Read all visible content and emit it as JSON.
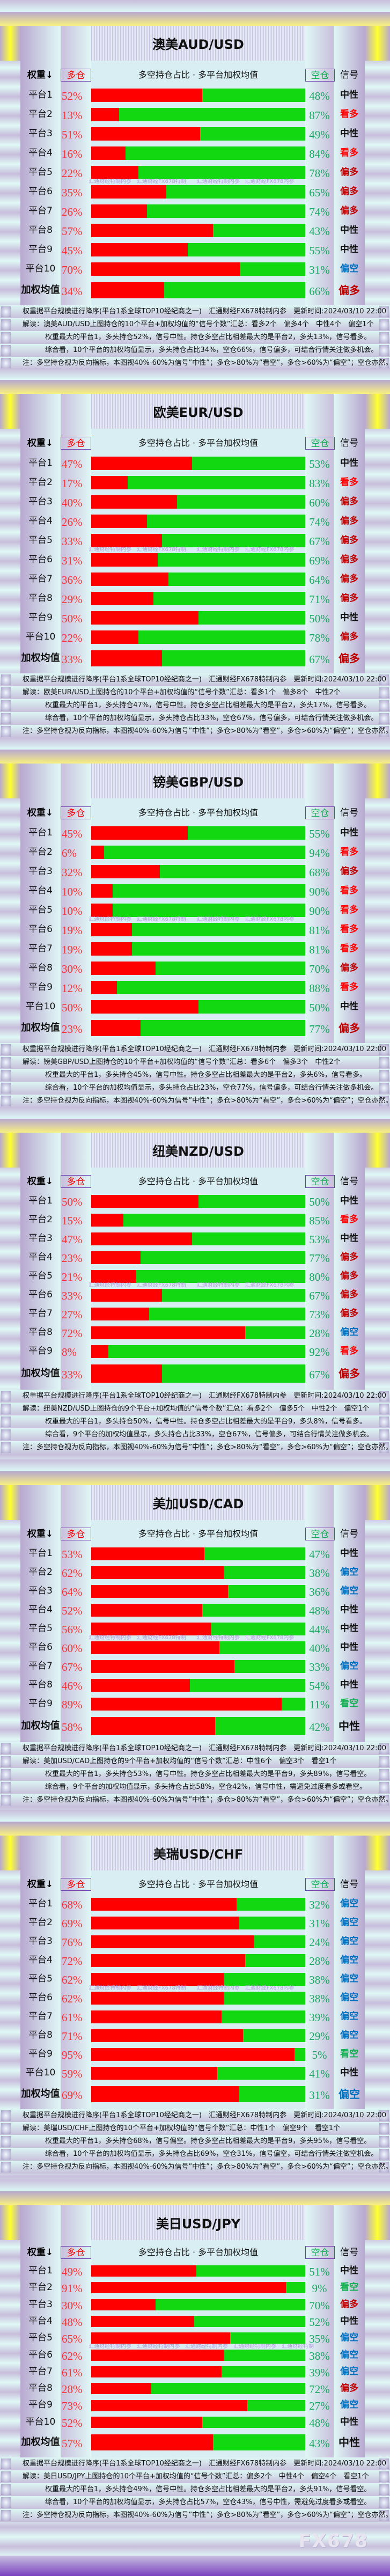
{
  "common": {
    "header_weight": "权重↓",
    "header_long": "多仓",
    "header_middle": "多空持仓占比 · 多平台加权均值",
    "header_short": "空仓",
    "header_signal": "信号",
    "avg_label": "加权均值",
    "footer_line1": "权重据平台规模进行降序(平台1系全球TOP10经纪商之一)　汇通财经FX678特制内参　更新时间:2024/03/10 22:00",
    "footer_note": "注：多空持仓视为反向指标，本图视40%-60%为信号”中性”；多仓>80%为“看空”，多仓>60%为“偏空”；空仓亦然。",
    "watermark": "汇通财经特制内参　汇通财经FX678特制　　汇通财经特制内参　汇通财经FX678内参",
    "brand": "FX678"
  },
  "colors": {
    "long_bar": "#ff0000",
    "short_bar": "#12d812",
    "signals": {
      "看多": "#ff0000",
      "偏多": "#c00000",
      "中性": "#111111",
      "偏空": "#0070c0",
      "看空": "#10b050"
    }
  },
  "panels": [
    {
      "title": "澳美AUD/USD",
      "rows": [
        {
          "label": "平台1",
          "long": "52%",
          "short": "48%",
          "signal": "中性"
        },
        {
          "label": "平台2",
          "long": "13%",
          "short": "87%",
          "signal": "看多"
        },
        {
          "label": "平台3",
          "long": "51%",
          "short": "49%",
          "signal": "中性"
        },
        {
          "label": "平台4",
          "long": "16%",
          "short": "84%",
          "signal": "看多"
        },
        {
          "label": "平台5",
          "long": "22%",
          "short": "78%",
          "signal": "偏多"
        },
        {
          "label": "平台6",
          "long": "35%",
          "short": "65%",
          "signal": "偏多"
        },
        {
          "label": "平台7",
          "long": "26%",
          "short": "74%",
          "signal": "偏多"
        },
        {
          "label": "平台8",
          "long": "57%",
          "short": "43%",
          "signal": "中性"
        },
        {
          "label": "平台9",
          "long": "45%",
          "short": "55%",
          "signal": "中性"
        },
        {
          "label": "平台10",
          "long": "70%",
          "short": "31%",
          "signal": "偏空"
        }
      ],
      "average": {
        "long": "34%",
        "short": "66%",
        "signal": "偏多"
      },
      "summary": "解读：澳美AUD/USD上图持仓的10个平台+加权均值的“信号个数”汇总：看多2个　偏多4个　中性4个　偏空1个",
      "detail": "权重最大的平台1，多头持仓52%，信号中性。持仓多空占比相差最大的是平台2，多头13%，信号看多。",
      "conclusion": "综合看，10个平台的加权均值显示，多头持仓占比34%，空仓66%，信号偏多，可结合行情关注做多机会。"
    },
    {
      "title": "欧美EUR/USD",
      "rows": [
        {
          "label": "平台1",
          "long": "47%",
          "short": "53%",
          "signal": "中性"
        },
        {
          "label": "平台2",
          "long": "17%",
          "short": "83%",
          "signal": "看多"
        },
        {
          "label": "平台3",
          "long": "40%",
          "short": "60%",
          "signal": "偏多"
        },
        {
          "label": "平台4",
          "long": "26%",
          "short": "74%",
          "signal": "偏多"
        },
        {
          "label": "平台5",
          "long": "33%",
          "short": "67%",
          "signal": "偏多"
        },
        {
          "label": "平台6",
          "long": "31%",
          "short": "69%",
          "signal": "偏多"
        },
        {
          "label": "平台7",
          "long": "36%",
          "short": "64%",
          "signal": "偏多"
        },
        {
          "label": "平台8",
          "long": "29%",
          "short": "71%",
          "signal": "偏多"
        },
        {
          "label": "平台9",
          "long": "50%",
          "short": "50%",
          "signal": "中性"
        },
        {
          "label": "平台10",
          "long": "22%",
          "short": "78%",
          "signal": "偏多"
        }
      ],
      "average": {
        "long": "33%",
        "short": "67%",
        "signal": "偏多"
      },
      "summary": "解读：欧美EUR/USD上图持仓的10个平台+加权均值的“信号个数”汇总：看多1个　偏多8个　中性2个",
      "detail": "权重最大的平台1，多头持仓47%，信号中性。持仓多空占比相差最大的是平台2，多头17%，信号看多。",
      "conclusion": "综合看，10个平台的加权均值显示，多头持仓占比33%，空仓67%，信号偏多，可结合行情关注做多机会。"
    },
    {
      "title": "镑美GBP/USD",
      "rows": [
        {
          "label": "平台1",
          "long": "45%",
          "short": "55%",
          "signal": "中性"
        },
        {
          "label": "平台2",
          "long": "6%",
          "short": "94%",
          "signal": "看多"
        },
        {
          "label": "平台3",
          "long": "32%",
          "short": "68%",
          "signal": "偏多"
        },
        {
          "label": "平台4",
          "long": "10%",
          "short": "90%",
          "signal": "看多"
        },
        {
          "label": "平台5",
          "long": "10%",
          "short": "90%",
          "signal": "看多"
        },
        {
          "label": "平台6",
          "long": "19%",
          "short": "81%",
          "signal": "看多"
        },
        {
          "label": "平台7",
          "long": "19%",
          "short": "81%",
          "signal": "看多"
        },
        {
          "label": "平台8",
          "long": "30%",
          "short": "70%",
          "signal": "偏多"
        },
        {
          "label": "平台9",
          "long": "12%",
          "short": "88%",
          "signal": "看多"
        },
        {
          "label": "平台10",
          "long": "50%",
          "short": "50%",
          "signal": "中性"
        }
      ],
      "average": {
        "long": "23%",
        "short": "77%",
        "signal": "偏多"
      },
      "summary": "解读：镑美GBP/USD上图持仓的10个平台+加权均值的“信号个数”汇总：看多6个　偏多3个　中性2个",
      "detail": "权重最大的平台1，多头持仓45%，信号中性。持仓多空占比相差最大的是平台2，多头6%，信号看多。",
      "conclusion": "综合看，10个平台的加权均值显示，多头持仓占比23%，空仓77%，信号偏多，可结合行情关注做多机会。"
    },
    {
      "title": "纽美NZD/USD",
      "rows": [
        {
          "label": "平台1",
          "long": "50%",
          "short": "50%",
          "signal": "中性"
        },
        {
          "label": "平台2",
          "long": "15%",
          "short": "85%",
          "signal": "看多"
        },
        {
          "label": "平台3",
          "long": "47%",
          "short": "53%",
          "signal": "中性"
        },
        {
          "label": "平台4",
          "long": "23%",
          "short": "77%",
          "signal": "偏多"
        },
        {
          "label": "平台5",
          "long": "21%",
          "short": "80%",
          "signal": "偏多"
        },
        {
          "label": "平台6",
          "long": "33%",
          "short": "67%",
          "signal": "偏多"
        },
        {
          "label": "平台7",
          "long": "27%",
          "short": "73%",
          "signal": "偏多"
        },
        {
          "label": "平台8",
          "long": "72%",
          "short": "28%",
          "signal": "偏空"
        },
        {
          "label": "平台9",
          "long": "8%",
          "short": "92%",
          "signal": "看多"
        }
      ],
      "average": {
        "long": "33%",
        "short": "67%",
        "signal": "偏多"
      },
      "summary": "解读：纽美NZD/USD上图持仓的9个平台+加权均值的“信号个数”汇总：看多2个　偏多5个　中性2个　偏空1个",
      "detail": "权重最大的平台1，多头持仓50%，信号中性。持仓多空占比相差最大的是平台9，多头8%，信号看多。",
      "conclusion": "综合看，9个平台的加权均值显示，多头持仓占比33%，空仓67%，信号偏多，可结合行情关注做多机会。"
    },
    {
      "title": "美加USD/CAD",
      "rows": [
        {
          "label": "平台1",
          "long": "53%",
          "short": "47%",
          "signal": "中性"
        },
        {
          "label": "平台2",
          "long": "62%",
          "short": "38%",
          "signal": "偏空"
        },
        {
          "label": "平台3",
          "long": "64%",
          "short": "36%",
          "signal": "偏空"
        },
        {
          "label": "平台4",
          "long": "52%",
          "short": "48%",
          "signal": "中性"
        },
        {
          "label": "平台5",
          "long": "56%",
          "short": "44%",
          "signal": "中性"
        },
        {
          "label": "平台6",
          "long": "60%",
          "short": "40%",
          "signal": "中性"
        },
        {
          "label": "平台7",
          "long": "67%",
          "short": "33%",
          "signal": "偏空"
        },
        {
          "label": "平台8",
          "long": "46%",
          "short": "54%",
          "signal": "中性"
        },
        {
          "label": "平台9",
          "long": "89%",
          "short": "11%",
          "signal": "看空"
        }
      ],
      "average": {
        "long": "58%",
        "short": "42%",
        "signal": "中性"
      },
      "summary": "解读：美加USD/CAD上图持仓的9个平台+加权均值的“信号个数”汇总：中性6个　偏空3个　看空1个",
      "detail": "权重最大的平台1，多头持仓53%，信号中性。持仓多空占比相差最大的是平台9，多头89%，信号看空。",
      "conclusion": "综合看，9个平台的加权均值显示，多头持仓占比58%，空仓42%，信号中性，需避免过度看多或看空。"
    },
    {
      "title": "美瑞USD/CHF",
      "rows": [
        {
          "label": "平台1",
          "long": "68%",
          "short": "32%",
          "signal": "偏空"
        },
        {
          "label": "平台2",
          "long": "69%",
          "short": "31%",
          "signal": "偏空"
        },
        {
          "label": "平台3",
          "long": "76%",
          "short": "24%",
          "signal": "偏空"
        },
        {
          "label": "平台4",
          "long": "72%",
          "short": "28%",
          "signal": "偏空"
        },
        {
          "label": "平台5",
          "long": "62%",
          "short": "38%",
          "signal": "偏空"
        },
        {
          "label": "平台6",
          "long": "62%",
          "short": "38%",
          "signal": "偏空"
        },
        {
          "label": "平台7",
          "long": "61%",
          "short": "39%",
          "signal": "偏空"
        },
        {
          "label": "平台8",
          "long": "71%",
          "short": "29%",
          "signal": "偏空"
        },
        {
          "label": "平台9",
          "long": "95%",
          "short": "5%",
          "signal": "看空"
        },
        {
          "label": "平台10",
          "long": "59%",
          "short": "41%",
          "signal": "中性"
        }
      ],
      "average": {
        "long": "69%",
        "short": "31%",
        "signal": "偏空"
      },
      "summary": "解读：美瑞USD/CHF上图持仓的10个平台+加权均值的“信号个数”汇总：中性1个　偏空9个　看空1个",
      "detail": "权重最大的平台1，多头持仓68%，信号偏空。持仓多空占比相差最大的是平台9，多头95%，信号看空。",
      "conclusion": "综合看，10个平台的加权均值显示，多头持仓占比69%，空仓31%，信号偏空，可结合行情关注做空机会。"
    },
    {
      "title": "美日USD/JPY",
      "watermark": "汇通财经特制内参　汇通财经特制内参　汇通财经特制内参　汇通财经特制内参　汇通财经特制",
      "rows": [
        {
          "label": "平台1",
          "long": "49%",
          "short": "51%",
          "signal": "中性"
        },
        {
          "label": "平台2",
          "long": "91%",
          "short": "9%",
          "signal": "看空"
        },
        {
          "label": "平台3",
          "long": "30%",
          "short": "70%",
          "signal": "偏多"
        },
        {
          "label": "平台4",
          "long": "48%",
          "short": "52%",
          "signal": "中性"
        },
        {
          "label": "平台5",
          "long": "65%",
          "short": "35%",
          "signal": "偏空"
        },
        {
          "label": "平台6",
          "long": "62%",
          "short": "38%",
          "signal": "偏空"
        },
        {
          "label": "平台7",
          "long": "61%",
          "short": "39%",
          "signal": "偏空"
        },
        {
          "label": "平台8",
          "long": "28%",
          "short": "72%",
          "signal": "偏多"
        },
        {
          "label": "平台9",
          "long": "73%",
          "short": "27%",
          "signal": "偏空"
        },
        {
          "label": "平台10",
          "long": "52%",
          "short": "48%",
          "signal": "中性"
        }
      ],
      "average": {
        "long": "57%",
        "short": "43%",
        "signal": "中性"
      },
      "summary": "解读：美日USD/JPY上图持仓的10个平台+加权均值的“信号个数”汇总：偏多2个　中性4个　偏空4个　看空1个",
      "detail": "权重最大的平台1，多头持仓49%，信号中性。持仓多空占比相差最大的是平台2，多头91%，信号看空。",
      "conclusion": "综合看，10个平台的加权均值显示，多头持仓占比57%，空仓43%，信号中性，需避免过度看多或看空。"
    }
  ]
}
